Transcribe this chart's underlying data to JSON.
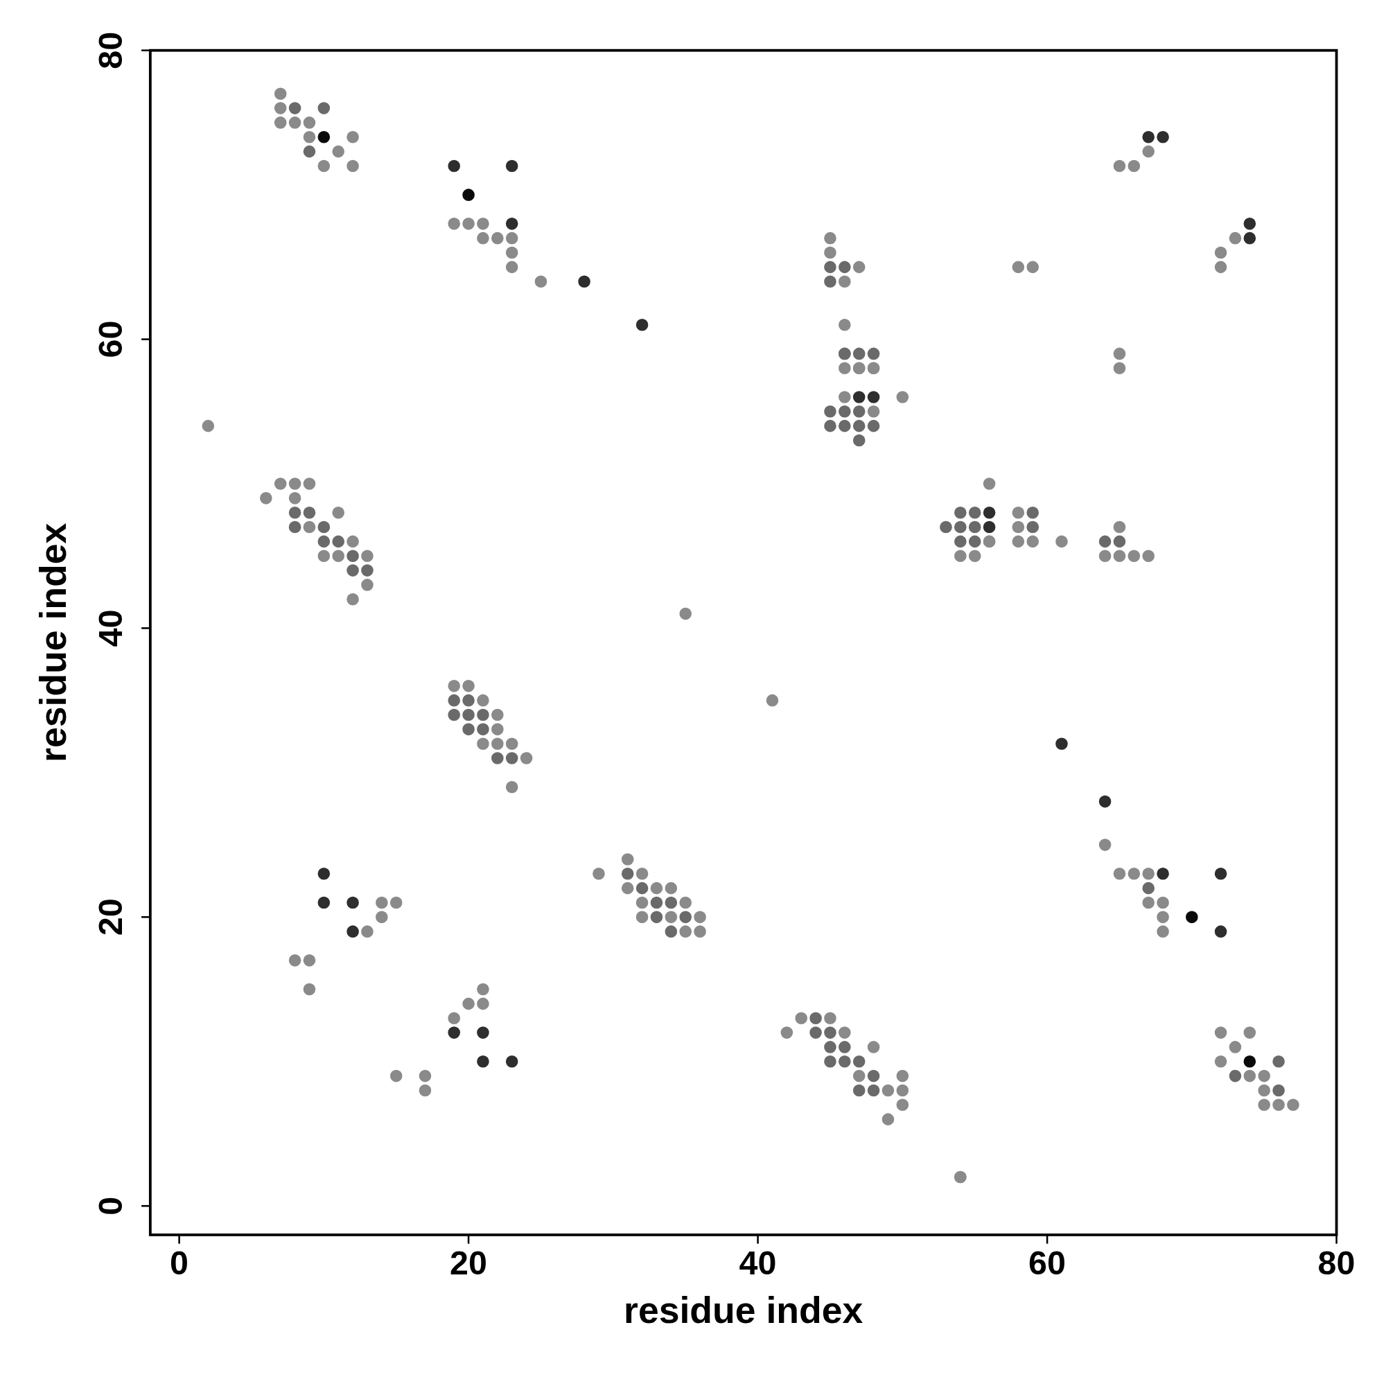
{
  "chart_data": {
    "type": "scatter",
    "xlabel": "residue index",
    "ylabel": "residue index",
    "xlim": [
      -2,
      80
    ],
    "ylim": [
      -2,
      80
    ],
    "xticks": [
      0,
      20,
      40,
      60,
      80
    ],
    "yticks": [
      0,
      20,
      40,
      60,
      80
    ],
    "grid": false,
    "marker": "circle",
    "series": [
      {
        "color": "#8a8a8a",
        "x": [
          7,
          7,
          7,
          8,
          9,
          9,
          12,
          11,
          10,
          12,
          19,
          20,
          21,
          21,
          22,
          23,
          23,
          23,
          25,
          2,
          45,
          45,
          47,
          46,
          46,
          47,
          48,
          54,
          56,
          46,
          47,
          48,
          46,
          50,
          48,
          58,
          59,
          65,
          66,
          67,
          72,
          72,
          73,
          65,
          65,
          6,
          7,
          8,
          9,
          8,
          11,
          9,
          12,
          10,
          11,
          13,
          13,
          12,
          35,
          56,
          56,
          54,
          55,
          58,
          58,
          58,
          59,
          61,
          65,
          64,
          65,
          66,
          67,
          19,
          20,
          21,
          22,
          22,
          21,
          22,
          23,
          24,
          23,
          41,
          64,
          29,
          31,
          32,
          31,
          33,
          34,
          32,
          35,
          32,
          34,
          36,
          35,
          36,
          14,
          15,
          14,
          13,
          8,
          9,
          9,
          65,
          66,
          67,
          67,
          68,
          68,
          68,
          21,
          20,
          21,
          19,
          15,
          17,
          17,
          42,
          43,
          45,
          46,
          48,
          47,
          50,
          49,
          50,
          50,
          49,
          54,
          72,
          74,
          73,
          72,
          74,
          75,
          75,
          75,
          76,
          77
        ],
        "values": [
          77,
          76,
          75,
          75,
          75,
          74,
          74,
          73,
          72,
          72,
          68,
          68,
          68,
          67,
          67,
          67,
          66,
          65,
          64,
          54,
          67,
          66,
          65,
          64,
          61,
          58,
          58,
          2,
          50,
          58,
          58,
          58,
          56,
          56,
          55,
          65,
          65,
          72,
          72,
          73,
          66,
          65,
          67,
          59,
          58,
          49,
          50,
          50,
          50,
          49,
          48,
          47,
          46,
          45,
          45,
          45,
          43,
          42,
          41,
          46,
          46,
          45,
          45,
          48,
          47,
          46,
          46,
          46,
          47,
          45,
          45,
          45,
          45,
          36,
          36,
          35,
          34,
          33,
          32,
          32,
          32,
          31,
          29,
          35,
          25,
          23,
          24,
          23,
          22,
          22,
          22,
          21,
          21,
          20,
          20,
          20,
          19,
          19,
          21,
          21,
          20,
          19,
          17,
          17,
          15,
          23,
          23,
          23,
          21,
          21,
          20,
          19,
          15,
          14,
          14,
          13,
          9,
          9,
          8,
          12,
          13,
          13,
          12,
          11,
          9,
          9,
          8,
          8,
          7,
          6,
          2,
          12,
          12,
          11,
          10,
          9,
          9,
          8,
          7,
          7,
          7
        ]
      },
      {
        "color": "#6a6a6a",
        "x": [
          8,
          10,
          9,
          45,
          46,
          45,
          46,
          46,
          47,
          48,
          45,
          46,
          47,
          45,
          46,
          47,
          48,
          47,
          8,
          9,
          8,
          10,
          10,
          11,
          12,
          12,
          13,
          54,
          55,
          53,
          54,
          55,
          54,
          55,
          59,
          59,
          64,
          65,
          19,
          20,
          19,
          20,
          21,
          20,
          21,
          22,
          23,
          31,
          32,
          33,
          34,
          33,
          35,
          34,
          67,
          44,
          44,
          45,
          45,
          46,
          45,
          46,
          47,
          48,
          47,
          48,
          76,
          73,
          76
        ],
        "values": [
          76,
          76,
          73,
          65,
          65,
          64,
          59,
          59,
          59,
          59,
          55,
          55,
          55,
          54,
          54,
          54,
          54,
          53,
          48,
          48,
          47,
          47,
          46,
          46,
          45,
          44,
          44,
          48,
          48,
          47,
          47,
          47,
          46,
          46,
          48,
          47,
          46,
          46,
          35,
          35,
          34,
          34,
          34,
          33,
          33,
          31,
          31,
          23,
          22,
          21,
          21,
          20,
          20,
          19,
          22,
          13,
          12,
          12,
          11,
          11,
          10,
          10,
          10,
          9,
          8,
          8,
          10,
          9,
          8
        ]
      },
      {
        "color": "#2e2e2e",
        "x": [
          19,
          23,
          23,
          28,
          32,
          67,
          68,
          74,
          74,
          47,
          48,
          56,
          56,
          61,
          64,
          10,
          10,
          12,
          12,
          68,
          72,
          72,
          19,
          21,
          21,
          23
        ],
        "values": [
          72,
          72,
          68,
          64,
          61,
          74,
          74,
          68,
          67,
          56,
          56,
          48,
          47,
          32,
          28,
          23,
          21,
          21,
          19,
          23,
          23,
          19,
          12,
          12,
          10,
          10
        ]
      },
      {
        "color": "#0a0a0a",
        "x": [
          10,
          20,
          70,
          74
        ],
        "values": [
          74,
          70,
          20,
          10
        ]
      }
    ]
  }
}
